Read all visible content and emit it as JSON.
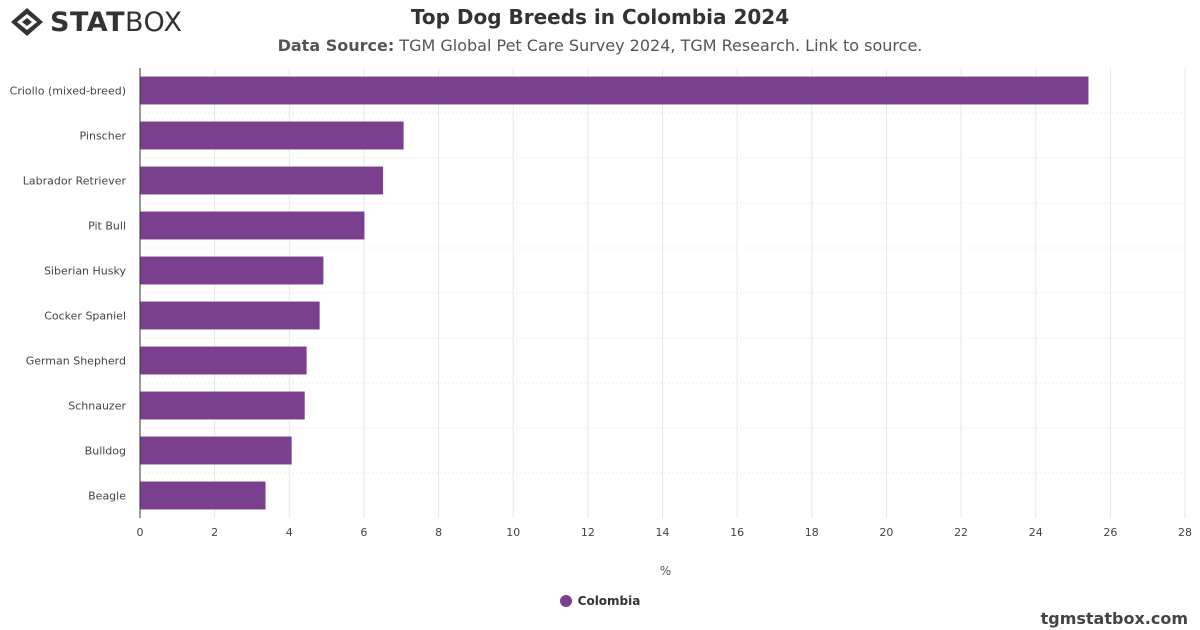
{
  "brand": {
    "logo_bold": "STAT",
    "logo_light": "BOX"
  },
  "header": {
    "title": "Top Dog Breeds in Colombia 2024",
    "subtitle_label": "Data Source:",
    "subtitle_text": " TGM Global Pet Care Survey 2024, TGM Research. Link to source."
  },
  "footer": {
    "site": "tgmstatbox.com"
  },
  "colors": {
    "bar": "#7b3f8f",
    "grid": "#e6e6e6",
    "axis": "#333333"
  },
  "chart_data": {
    "type": "bar",
    "orientation": "horizontal",
    "categories": [
      "Criollo (mixed-breed)",
      "Pinscher",
      "Labrador Retriever",
      "Pit Bull",
      "Siberian Husky",
      "Cocker Spaniel",
      "German Shepherd",
      "Schnauzer",
      "Bulldog",
      "Beagle"
    ],
    "series": [
      {
        "name": "Colombia",
        "values": [
          25.4,
          7.05,
          6.5,
          6.0,
          4.9,
          4.8,
          4.45,
          4.4,
          4.05,
          3.35
        ]
      }
    ],
    "xlabel": "%",
    "xlim": [
      0,
      28
    ],
    "xticks": [
      0,
      2,
      4,
      6,
      8,
      10,
      12,
      14,
      16,
      18,
      20,
      22,
      24,
      26,
      28
    ],
    "grid": true,
    "legend_position": "bottom-center"
  }
}
